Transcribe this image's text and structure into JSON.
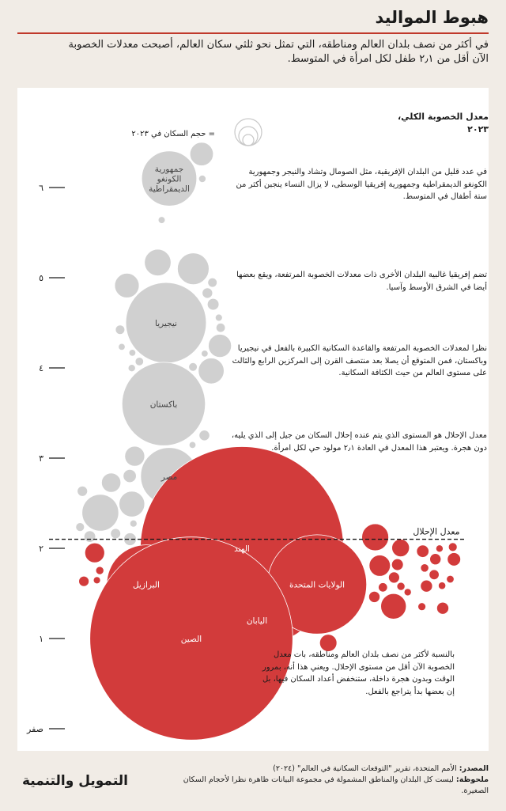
{
  "title": "هبوط المواليد",
  "subtitle": "في أكثر من نصف بلدان العالم ومناطقه، التي تمثل نحو ثلثي سكان العالم، أصبحت معدلات الخصوبة الآن أقل من ٢٫١ طفل لكل امرأة في المتوسط.",
  "chart_data": {
    "type": "scatter",
    "ylabel": "معدل الخصوبة الكلي، ٢٠٢٣",
    "yticks": [
      {
        "value": 0,
        "label": "صفر"
      },
      {
        "value": 1,
        "label": "١"
      },
      {
        "value": 2,
        "label": "٢"
      },
      {
        "value": 3,
        "label": "٣"
      },
      {
        "value": 4,
        "label": "٤"
      },
      {
        "value": 5,
        "label": "٥"
      },
      {
        "value": 6,
        "label": "٦"
      }
    ],
    "ylim": [
      0,
      6.5
    ],
    "replacement_rate": 2.1,
    "replacement_label": "معدل الإحلال",
    "size_legend": "= حجم السكان في ٢٠٢٣",
    "colors": {
      "above": "#d0d0d0",
      "below": "#d23b3b",
      "label_above": "#444444",
      "label_below": "#ffffff"
    },
    "labeled_countries": [
      {
        "name": "جمهورية الكونغو الديمقراطية",
        "fertility": 6.1,
        "population": 105
      },
      {
        "name": "نيجيريا",
        "fertility": 4.5,
        "population": 224
      },
      {
        "name": "باكستان",
        "fertility": 3.6,
        "population": 240
      },
      {
        "name": "مصر",
        "fertility": 2.8,
        "population": 113
      },
      {
        "name": "الهند",
        "fertility": 2.0,
        "population": 1429
      },
      {
        "name": "الولايات المتحدة",
        "fertility": 1.6,
        "population": 340
      },
      {
        "name": "البرازيل",
        "fertility": 1.6,
        "population": 216
      },
      {
        "name": "اليابان",
        "fertility": 1.2,
        "population": 124
      },
      {
        "name": "الصين",
        "fertility": 1.0,
        "population": 1425
      }
    ]
  },
  "annotations": {
    "a1": "في عدد قليل من البلدان الإفريقية، مثل الصومال وتشاد والنيجر وجمهورية الكونغو الديمقراطية وجمهورية إفريقيا الوسطى، لا يزال النساء ينجبن أكثر من ستة أطفال في المتوسط.",
    "a2": "تضم إفريقيا غالبية البلدان الأخرى ذات معدلات الخصوبة المرتفعة، ويقع بعضها أيضا في الشرق الأوسط وآسيا.",
    "a3": "نظرا لمعدلات الخصوبة المرتفعة والقاعدة السكانية الكبيرة بالفعل في نيجيريا وباكستان، فمن المتوقع أن يصلا بعد منتصف القرن إلى المركزين الرابع والثالث على مستوى العالم من حيث الكثافة السكانية.",
    "a4": "معدل الإحلال هو المستوى الذي يتم عنده إحلال السكان من جيل إلى الذي يليه، دون هجرة. ويعتبر هذا المعدل في العادة ٢٫١ مولود حي لكل امرأة.",
    "a5": "بالنسبة لأكثر من نصف بلدان العالم ومناطقه، بات معدل الخصوبة الآن أقل من مستوى الإحلال. ويعني هذا أنه، بمرور الوقت وبدون هجرة داخلة، ستنخفض أعداد السكان فيها، بل إن بعضها بدأ يتراجع بالفعل."
  },
  "footer": {
    "brand": "التمويل والتنمية",
    "source_label": "المصدر:",
    "source_text": " الأمم المتحدة، تقرير \"التوقعات السكانية في العالم\" (٢٠٢٤)",
    "note_label": "ملحوظة:",
    "note_text": " ليست كل البلدان والمناطق المشمولة في مجموعة البيانات ظاهرة نظرا لأحجام السكان الصغيرة."
  }
}
